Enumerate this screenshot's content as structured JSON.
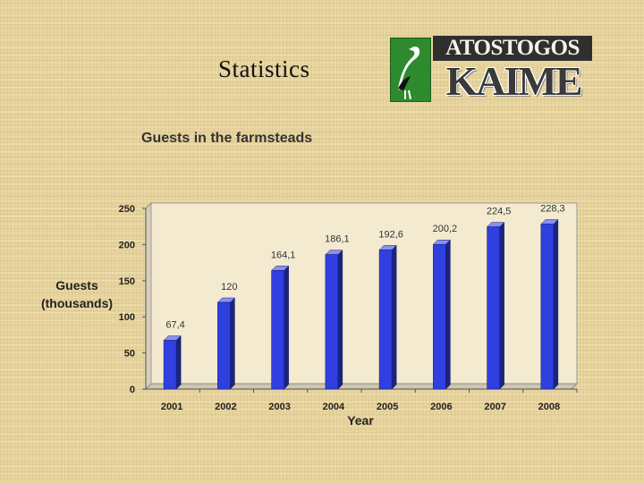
{
  "slide": {
    "title": "Statistics"
  },
  "logo": {
    "line1": "ATOSTOGOS",
    "line2": "KAIME",
    "colors": {
      "green": "#2d8a2d",
      "dark": "#2f2f2f"
    }
  },
  "chart_data": {
    "type": "bar",
    "title": "Guests in the farmsteads",
    "xlabel": "Year",
    "ylabel_lines": [
      "Guests",
      "(thousands)"
    ],
    "categories": [
      "2001",
      "2002",
      "2003",
      "2004",
      "2005",
      "2006",
      "2007",
      "2008"
    ],
    "values": [
      67.4,
      120,
      164.1,
      186.1,
      192.6,
      200.2,
      224.5,
      228.3
    ],
    "data_labels": [
      "67,4",
      "120",
      "164,1",
      "186,1",
      "192,6",
      "200,2",
      "224,5",
      "228,3"
    ],
    "ylim": [
      0,
      250
    ],
    "yticks": [
      0,
      50,
      100,
      150,
      200,
      250
    ],
    "grid": false,
    "legend": "none",
    "bar_color": "#2f3fe0"
  }
}
